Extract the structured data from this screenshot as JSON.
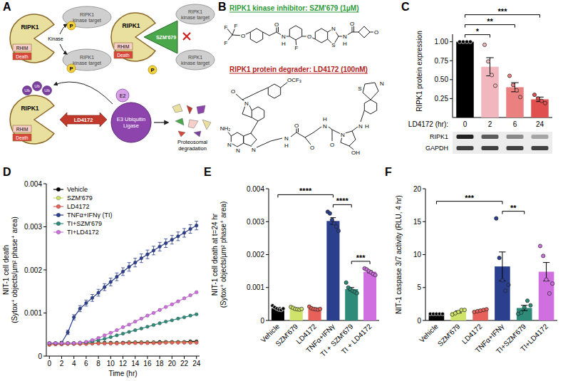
{
  "panel_labels": [
    "A",
    "B",
    "C",
    "D",
    "E",
    "F"
  ],
  "diagram": {
    "protein": "RIPK1",
    "domains": [
      "RHIM",
      "Death"
    ],
    "target": "RIPK1 kinase target",
    "kinase": "Kinase",
    "phospho": "P",
    "inhibitor": "SZM'679",
    "degrader": "LD4172",
    "ligase": "E3 Ubiquitin Ligase",
    "e2": "E2",
    "ubiquitin": "Ub",
    "outcome": "Proteosomal degradation"
  },
  "structures": {
    "inhibitor_title": "RIPK1 kinase inhibitor: SZM'679 (1µM)",
    "inhibitor_atoms": [
      "F",
      "F",
      "F",
      "O",
      "O",
      "N",
      "H",
      "F",
      "O",
      "N",
      "S",
      "N",
      "H",
      "O",
      "O"
    ],
    "degrader_title": "RIPK1 protein degrader: LD4172 (100nM)",
    "degrader_atoms": [
      "O",
      "OCF₃",
      "N",
      "NH₂",
      "N",
      "N",
      "N",
      "N",
      "H",
      "O",
      "O",
      "N",
      "H",
      "N",
      "O",
      "OH",
      "N",
      "H",
      "S",
      "N"
    ]
  },
  "chart_data": [
    {
      "type": "bar",
      "y_label": "RIPK1 protein expression",
      "x_label": "LD4172 (hr):",
      "categories": [
        "0",
        "2",
        "6",
        "24"
      ],
      "values": [
        1.0,
        0.67,
        0.4,
        0.24
      ],
      "errors": [
        0,
        0.12,
        0.06,
        0.03
      ],
      "points": [
        [
          1,
          1,
          1,
          1
        ],
        [
          0.96,
          0.74,
          0.56,
          0.42
        ],
        [
          0.55,
          0.43,
          0.36,
          0.27
        ],
        [
          0.3,
          0.25,
          0.22,
          0.19
        ]
      ],
      "colors": [
        "#000000",
        "#f2b6be",
        "#ea8080",
        "#e0504f"
      ],
      "ylim": [
        0,
        1.1
      ],
      "yticks": [
        0.25,
        {
          "value": 0.5,
          "label": "0.50"
        },
        0.75,
        {
          "value": 1,
          "label": "1.00"
        }
      ],
      "annotations": [
        {
          "text": "*",
          "from": "0",
          "to": "2"
        },
        {
          "text": "**",
          "from": "0",
          "to": "6"
        },
        {
          "text": "***",
          "from": "0",
          "to": "24"
        }
      ],
      "blot_labels": [
        "RIPK1",
        "GAPDH"
      ]
    },
    {
      "type": "line",
      "marker": "circle",
      "legend": "upper left",
      "y_label": "NIT-1 cell death (Sytox⁺ objects/µm² phase⁺ area)",
      "x_label": "Time (hr)",
      "x": [
        0,
        1,
        2,
        3,
        4,
        5,
        6,
        7,
        8,
        9,
        10,
        11,
        12,
        13,
        14,
        15,
        16,
        17,
        18,
        19,
        20,
        21,
        22,
        23,
        24
      ],
      "xlim": [
        -0.5,
        24.5
      ],
      "xticks": [
        0,
        2,
        4,
        6,
        8,
        10,
        12,
        14,
        16,
        18,
        20,
        22,
        24
      ],
      "ylim": [
        0,
        0.004
      ],
      "yticks": [
        0,
        0.001,
        0.002,
        0.003,
        0.004
      ],
      "series": [
        {
          "name": "Vehicle",
          "color": "#000000",
          "values": [
            0.00028,
            0.00029,
            0.00029,
            0.0003,
            0.0003,
            0.0003,
            0.0003,
            0.0003,
            0.00031,
            0.00031,
            0.00031,
            0.00031,
            0.00031,
            0.00032,
            0.00032,
            0.00032,
            0.00032,
            0.00032,
            0.00033,
            0.00033,
            0.00033,
            0.00033,
            0.00033,
            0.00034,
            0.00034
          ]
        },
        {
          "name": "SZM'679",
          "color": "#cfe36a",
          "values": [
            0.00027,
            0.00028,
            0.00028,
            0.00029,
            0.00029,
            0.00029,
            0.00029,
            0.0003,
            0.0003,
            0.0003,
            0.0003,
            0.0003,
            0.0003,
            0.00031,
            0.00031,
            0.00031,
            0.00031,
            0.00031,
            0.00031,
            0.00032,
            0.00032,
            0.00032,
            0.00032,
            0.00032,
            0.00032
          ]
        },
        {
          "name": "LD4172",
          "color": "#e8605a",
          "values": [
            0.00026,
            0.00027,
            0.00027,
            0.00028,
            0.00028,
            0.00028,
            0.00028,
            0.00029,
            0.00029,
            0.00029,
            0.00029,
            0.00029,
            0.0003,
            0.0003,
            0.0003,
            0.0003,
            0.0003,
            0.0003,
            0.0003,
            0.00031,
            0.00031,
            0.00031,
            0.00031,
            0.00031,
            0.00031
          ]
        },
        {
          "name": "TNFα+IFNγ (TI)",
          "color": "#2b3f8f",
          "values": [
            0.0003,
            0.0003,
            0.00031,
            0.00055,
            0.0009,
            0.0011,
            0.00123,
            0.00135,
            0.00147,
            0.0016,
            0.00172,
            0.00184,
            0.00196,
            0.00207,
            0.00217,
            0.00227,
            0.00236,
            0.00245,
            0.00254,
            0.00262,
            0.0027,
            0.00278,
            0.00286,
            0.00295,
            0.00303
          ],
          "errors": [
            2e-05,
            2e-05,
            3e-05,
            5e-05,
            6e-05,
            7e-05,
            7e-05,
            8e-05,
            8e-05,
            8e-05,
            9e-05,
            9e-05,
            9e-05,
            0.0001,
            0.0001,
            0.0001,
            0.0001,
            0.0001,
            0.0001,
            0.0001,
            0.0001,
            0.0001,
            0.0001,
            0.0001,
            0.0001
          ]
        },
        {
          "name": "TI+SZM'679",
          "color": "#2e8b7a",
          "values": [
            0.0003,
            0.0003,
            0.0003,
            0.0003,
            0.0003,
            0.00031,
            0.00032,
            0.00034,
            0.00037,
            0.0004,
            0.00044,
            0.00048,
            0.00052,
            0.00056,
            0.0006,
            0.00064,
            0.00068,
            0.00072,
            0.00076,
            0.0008,
            0.00083,
            0.00087,
            0.0009,
            0.00094,
            0.00097
          ]
        },
        {
          "name": "TI+LD4172",
          "color": "#d070e0",
          "values": [
            0.0003,
            0.0003,
            0.0003,
            0.0003,
            0.0003,
            0.00031,
            0.00033,
            0.00037,
            0.00042,
            0.00048,
            0.00054,
            0.0006,
            0.00067,
            0.00073,
            0.0008,
            0.00087,
            0.00094,
            0.001,
            0.00107,
            0.00114,
            0.0012,
            0.00127,
            0.00134,
            0.00141,
            0.00148
          ]
        }
      ]
    },
    {
      "type": "bar",
      "y_label": "NIT-1 cell death at t=24 hr (Sytox⁺ objects/µm² phase⁺ area)",
      "categories": [
        "Vehicle",
        "SZM'679",
        "LD4172",
        "TNFα+IFNγ",
        "TI + SZM'679",
        "TI + LD4172"
      ],
      "values": [
        0.00037,
        0.00036,
        0.00036,
        0.00302,
        0.00095,
        0.00148
      ],
      "errors": [
        3e-05,
        2e-05,
        2e-05,
        0.0001,
        5e-05,
        3e-05
      ],
      "points": [
        [
          0.00045,
          0.0004,
          0.00036,
          0.00033,
          0.00032,
          0.00036
        ],
        [
          0.00041,
          0.00038,
          0.00035,
          0.00034,
          0.00033,
          0.00035
        ],
        [
          0.00042,
          0.00037,
          0.00035,
          0.00034,
          0.00033,
          0.00035
        ],
        [
          0.0033,
          0.00325,
          0.00305,
          0.00295,
          0.00285,
          0.00272
        ],
        [
          0.00115,
          0.001,
          0.00095,
          0.0009,
          0.00087,
          0.00083
        ],
        [
          0.00158,
          0.00155,
          0.0015,
          0.00146,
          0.00141,
          0.00138
        ]
      ],
      "colors": [
        "#000000",
        "#cfe36a",
        "#e8605a",
        "#2b3f8f",
        "#2e8b7a",
        "#d070e0"
      ],
      "ylim": [
        0,
        0.004
      ],
      "yticks": [
        0,
        0.001,
        0.002,
        0.003,
        0.004
      ],
      "annotations": [
        {
          "text": "****",
          "from": "Vehicle",
          "to": "TNFα+IFNγ"
        },
        {
          "text": "****",
          "from": "TNFα+IFNγ",
          "to": "TI + SZM'679"
        },
        {
          "text": "***",
          "from": "TI + SZM'679",
          "to": "TI + LD4172"
        }
      ]
    },
    {
      "type": "bar",
      "y_label": "NIT-1 caspase 3/7 activity (RLU, 4 hr)",
      "categories": [
        "Vehicle",
        "SZM'679",
        "LD4172",
        "TNFα+IFNγ",
        "TI+SZM'679",
        "TI+LD4172"
      ],
      "values": [
        1,
        1.3,
        1.5,
        8.2,
        1.9,
        7.4
      ],
      "errors": [
        0.02,
        0.15,
        0.1,
        2.2,
        0.4,
        1.4
      ],
      "points": [
        [
          1,
          1,
          1,
          1,
          1
        ],
        [
          0.9,
          1.1,
          1.3,
          1.6,
          1.6
        ],
        [
          1.3,
          1.4,
          1.5,
          1.6,
          1.7
        ],
        [
          15.5,
          9.5,
          6.1,
          4.5,
          5.4
        ],
        [
          1.0,
          1.2,
          2.0,
          3.0,
          2.3
        ],
        [
          11.3,
          9.8,
          6.2,
          4.1,
          5.6
        ]
      ],
      "colors": [
        "#000000",
        "#cfe36a",
        "#e8605a",
        "#2b3f8f",
        "#2e8b7a",
        "#d070e0"
      ],
      "ylim": [
        0,
        20
      ],
      "yticks": [
        0,
        5,
        10,
        15,
        20
      ],
      "annotations": [
        {
          "text": "***",
          "from": "Vehicle",
          "to": "TNFα+IFNγ"
        },
        {
          "text": "**",
          "from": "TNFα+IFNγ",
          "to": "TI+SZM'679"
        }
      ]
    }
  ]
}
